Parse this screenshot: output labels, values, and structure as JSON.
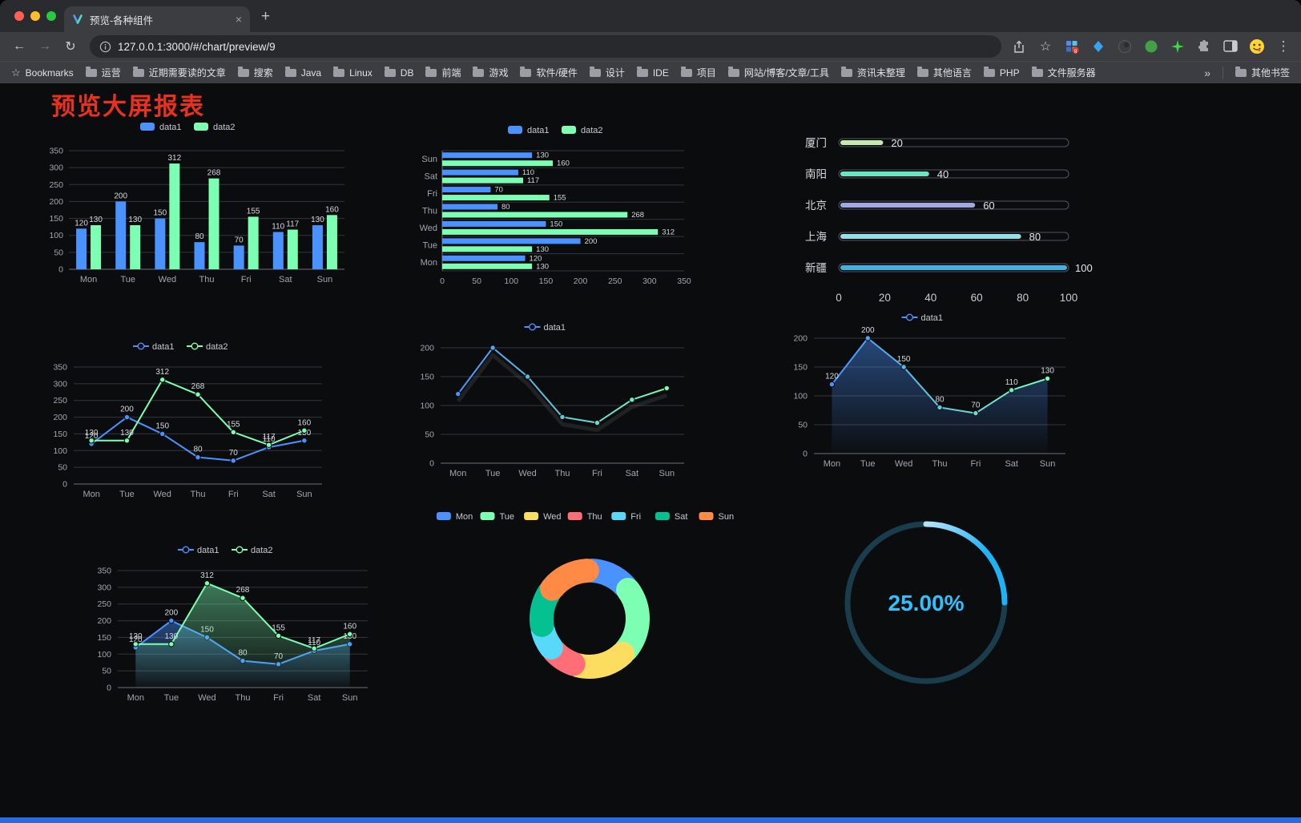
{
  "browser": {
    "tab_title": "预览-各种组件",
    "url": "127.0.0.1:3000/#/chart/preview/9",
    "icons": {
      "back": "←",
      "forward": "→",
      "reload": "↻",
      "star": "☆",
      "new_tab": "+",
      "close_tab": "×",
      "menu": "⋮",
      "bookmarks_star": "☆",
      "overflow": "»"
    },
    "bookmarks_bar": {
      "bookmarks_label": "Bookmarks",
      "folders": [
        "运营",
        "近期需要读的文章",
        "搜索",
        "Java",
        "Linux",
        "DB",
        "前端",
        "游戏",
        "软件/硬件",
        "设计",
        "IDE",
        "项目",
        "网站/博客/文章/工具",
        "资讯未整理",
        "其他语言",
        "PHP",
        "文件服务器"
      ],
      "other_bookmarks": "其他书签"
    }
  },
  "page": {
    "title": "预览大屏报表",
    "title_color": "#e8321f",
    "footer_color": "#2a6be0",
    "background": "#0b0c0e"
  },
  "chart_data": [
    {
      "type": "bar",
      "categories": [
        "Mon",
        "Tue",
        "Wed",
        "Thu",
        "Fri",
        "Sat",
        "Sun"
      ],
      "series": [
        {
          "name": "data1",
          "color": "#4992ff",
          "values": [
            120,
            200,
            150,
            80,
            70,
            110,
            130
          ]
        },
        {
          "name": "data2",
          "color": "#7cffb2",
          "values": [
            130,
            130,
            312,
            268,
            155,
            117,
            160
          ]
        }
      ],
      "ylim": [
        0,
        350
      ],
      "ytick": 50,
      "legend_position": "top",
      "grid": true
    },
    {
      "type": "hbar",
      "categories": [
        "Sun",
        "Sat",
        "Fri",
        "Thu",
        "Wed",
        "Tue",
        "Mon"
      ],
      "series": [
        {
          "name": "data1",
          "color": "#4992ff",
          "values": [
            130,
            110,
            70,
            80,
            150,
            200,
            120
          ]
        },
        {
          "name": "data2",
          "color": "#7cffb2",
          "values": [
            160,
            117,
            155,
            268,
            312,
            130,
            130
          ]
        }
      ],
      "xlim": [
        0,
        350
      ],
      "xtick": 50,
      "legend_position": "top",
      "grid": true
    },
    {
      "type": "progress",
      "items": [
        {
          "label": "厦门",
          "value": 20,
          "color": "#c4ebad"
        },
        {
          "label": "南阳",
          "value": 40,
          "color": "#6be6c1"
        },
        {
          "label": "北京",
          "value": 60,
          "color": "#a0a7e6"
        },
        {
          "label": "上海",
          "value": 80,
          "color": "#96dee8"
        },
        {
          "label": "新疆",
          "value": 100,
          "color": "#3fb1e3"
        }
      ],
      "max": 100,
      "xticks": [
        0,
        20,
        40,
        60,
        80,
        100
      ]
    },
    {
      "type": "line",
      "categories": [
        "Mon",
        "Tue",
        "Wed",
        "Thu",
        "Fri",
        "Sat",
        "Sun"
      ],
      "series": [
        {
          "name": "data1",
          "color": "#4992ff",
          "values": [
            120,
            200,
            150,
            80,
            70,
            110,
            130
          ],
          "labels": true
        },
        {
          "name": "data2",
          "color": "#7cffb2",
          "values": [
            130,
            130,
            312,
            268,
            155,
            117,
            160
          ],
          "labels": true
        }
      ],
      "ylim": [
        0,
        350
      ],
      "ytick": 50,
      "legend_position": "top",
      "grid": true
    },
    {
      "type": "line",
      "categories": [
        "Mon",
        "Tue",
        "Wed",
        "Thu",
        "Fri",
        "Sat",
        "Sun"
      ],
      "series": [
        {
          "name": "data1",
          "color": "#4992ff",
          "gradient": [
            "#4992ff",
            "#7cffb2"
          ],
          "shadow": true,
          "values": [
            120,
            200,
            150,
            80,
            70,
            110,
            130
          ]
        }
      ],
      "ylim": [
        0,
        200
      ],
      "ytick": 50,
      "legend_position": "top",
      "grid": true
    },
    {
      "type": "line",
      "categories": [
        "Mon",
        "Tue",
        "Wed",
        "Thu",
        "Fri",
        "Sat",
        "Sun"
      ],
      "series": [
        {
          "name": "data1",
          "color": "#4992ff",
          "gradient": [
            "#4992ff",
            "#7cffb2"
          ],
          "area": "#4992ff",
          "values": [
            120,
            200,
            150,
            80,
            70,
            110,
            130
          ],
          "labels": true
        }
      ],
      "ylim": [
        0,
        200
      ],
      "ytick": 50,
      "legend_position": "top",
      "grid": true
    },
    {
      "type": "line",
      "categories": [
        "Mon",
        "Tue",
        "Wed",
        "Thu",
        "Fri",
        "Sat",
        "Sun"
      ],
      "series": [
        {
          "name": "data1",
          "color": "#4992ff",
          "area": "#4992ff",
          "values": [
            120,
            200,
            150,
            80,
            70,
            110,
            130
          ],
          "labels": true
        },
        {
          "name": "data2",
          "color": "#7cffb2",
          "area": "#7cffb2",
          "values": [
            130,
            130,
            312,
            268,
            155,
            117,
            160
          ],
          "labels": true
        }
      ],
      "ylim": [
        0,
        350
      ],
      "ytick": 50,
      "legend_position": "top",
      "grid": true
    },
    {
      "type": "donut",
      "categories": [
        "Mon",
        "Tue",
        "Wed",
        "Thu",
        "Fri",
        "Sat",
        "Sun"
      ],
      "values": [
        120,
        200,
        150,
        80,
        70,
        110,
        130
      ],
      "colors": [
        "#4992ff",
        "#7cffb2",
        "#fddd60",
        "#ff6e76",
        "#58d9f9",
        "#05c091",
        "#ff8a45"
      ],
      "legend_position": "top"
    },
    {
      "type": "gauge",
      "value": 25,
      "label": "25.00%",
      "color": "#1fb3f6",
      "track": "#1a3d4c",
      "text_color": "#2ec1fc"
    }
  ]
}
